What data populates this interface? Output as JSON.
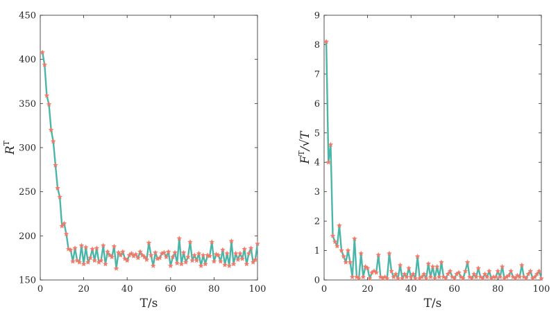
{
  "colors": {
    "line": "#4bb5a8",
    "marker": "#f07a6a",
    "axis": "#262626",
    "grid": "#e6e6e6"
  },
  "chart_data": [
    {
      "type": "line",
      "title": "",
      "xlabel": "T/s",
      "ylabel_main": "R",
      "ylabel_sup": "T",
      "xlim": [
        0,
        100
      ],
      "ylim": [
        150,
        450
      ],
      "xticks": [
        0,
        20,
        40,
        60,
        80,
        100
      ],
      "yticks": [
        150,
        200,
        250,
        300,
        350,
        400,
        450
      ],
      "x": [
        1,
        2,
        3,
        4,
        5,
        6,
        7,
        8,
        9,
        10,
        11,
        12,
        13,
        14,
        15,
        16,
        17,
        18,
        19,
        20,
        21,
        22,
        23,
        24,
        25,
        26,
        27,
        28,
        29,
        30,
        31,
        32,
        33,
        34,
        35,
        36,
        37,
        38,
        39,
        40,
        41,
        42,
        43,
        44,
        45,
        46,
        47,
        48,
        49,
        50,
        51,
        52,
        53,
        54,
        55,
        56,
        57,
        58,
        59,
        60,
        61,
        62,
        63,
        64,
        65,
        66,
        67,
        68,
        69,
        70,
        71,
        72,
        73,
        74,
        75,
        76,
        77,
        78,
        79,
        80,
        81,
        82,
        83,
        84,
        85,
        86,
        87,
        88,
        89,
        90,
        91,
        92,
        93,
        94,
        95,
        96,
        97,
        98,
        99,
        100
      ],
      "values": [
        408,
        394,
        359,
        349,
        320,
        307,
        280,
        254,
        244,
        211,
        214,
        202,
        185,
        184,
        171,
        186,
        172,
        170,
        189,
        168,
        187,
        170,
        175,
        185,
        172,
        186,
        170,
        172,
        189,
        168,
        182,
        178,
        176,
        188,
        163,
        181,
        178,
        182,
        174,
        172,
        178,
        180,
        177,
        179,
        175,
        182,
        178,
        176,
        173,
        192,
        178,
        166,
        181,
        174,
        175,
        180,
        181,
        176,
        182,
        166,
        176,
        181,
        169,
        197,
        168,
        181,
        170,
        176,
        193,
        172,
        178,
        172,
        180,
        166,
        178,
        168,
        178,
        177,
        193,
        171,
        179,
        178,
        171,
        184,
        167,
        180,
        166,
        194,
        168,
        180,
        173,
        180,
        174,
        185,
        168,
        180,
        186,
        170,
        173,
        191
      ]
    },
    {
      "type": "line",
      "title": "",
      "xlabel": "T/s",
      "ylabel_main": "F",
      "ylabel_sup": "T",
      "ylabel_tail": "/√T",
      "xlim": [
        0,
        100
      ],
      "ylim": [
        0,
        9
      ],
      "xticks": [
        0,
        20,
        40,
        60,
        80,
        100
      ],
      "yticks": [
        0,
        1,
        2,
        3,
        4,
        5,
        6,
        7,
        8,
        9
      ],
      "x": [
        1,
        2,
        3,
        4,
        5,
        6,
        7,
        8,
        9,
        10,
        11,
        12,
        13,
        14,
        15,
        16,
        17,
        18,
        19,
        20,
        21,
        22,
        23,
        24,
        25,
        26,
        27,
        28,
        29,
        30,
        31,
        32,
        33,
        34,
        35,
        36,
        37,
        38,
        39,
        40,
        41,
        42,
        43,
        44,
        45,
        46,
        47,
        48,
        49,
        50,
        51,
        52,
        53,
        54,
        55,
        56,
        57,
        58,
        59,
        60,
        61,
        62,
        63,
        64,
        65,
        66,
        67,
        68,
        69,
        70,
        71,
        72,
        73,
        74,
        75,
        76,
        77,
        78,
        79,
        80,
        81,
        82,
        83,
        84,
        85,
        86,
        87,
        88,
        89,
        90,
        91,
        92,
        93,
        94,
        95,
        96,
        97,
        98,
        99,
        100
      ],
      "values": [
        8.1,
        4.0,
        4.6,
        1.5,
        1.3,
        1.15,
        1.85,
        1.0,
        0.8,
        0.6,
        1.0,
        0.6,
        0.1,
        1.4,
        0.1,
        0.05,
        0.9,
        0.1,
        0.45,
        0.4,
        0.05,
        0.25,
        0.3,
        0.25,
        0.85,
        0.1,
        0.05,
        0.1,
        0.05,
        0.9,
        0.3,
        0.1,
        0.2,
        0.05,
        0.5,
        0.05,
        0.2,
        0.1,
        0.4,
        0.1,
        0.2,
        0.05,
        0.8,
        0.05,
        0.1,
        0.2,
        0.05,
        0.55,
        0.1,
        0.45,
        0.05,
        0.45,
        0.1,
        0.6,
        0.1,
        0.05,
        0.2,
        0.3,
        0.1,
        0.05,
        0.2,
        0.25,
        0.1,
        0.05,
        0.3,
        0.6,
        0.1,
        0.05,
        0.2,
        0.1,
        0.4,
        0.1,
        0.05,
        0.2,
        0.1,
        0.3,
        0.05,
        0.1,
        0.1,
        0.3,
        0.1,
        0.45,
        0.05,
        0.1,
        0.15,
        0.3,
        0.1,
        0.05,
        0.15,
        0.1,
        0.5,
        0.1,
        0.05,
        0.2,
        0.3,
        0.05,
        0.1,
        0.2,
        0.3,
        0.05
      ]
    }
  ]
}
